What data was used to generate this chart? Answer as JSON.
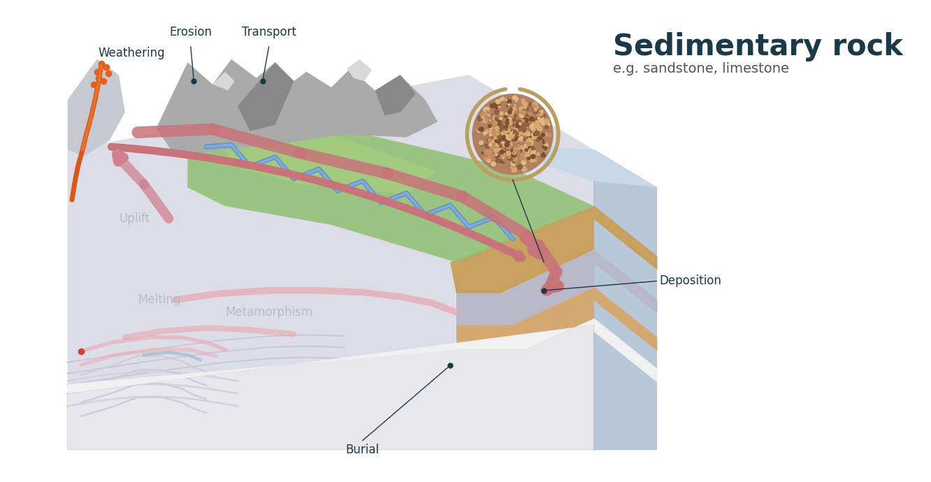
{
  "title": "Sedimentary rock",
  "subtitle": "e.g. sandstone, limestone",
  "title_color": "#1a3a4a",
  "subtitle_color": "#444444",
  "label_color": "#1a3a4a",
  "bg_color": "#ffffff",
  "labels": {
    "weathering": "Weathering",
    "erosion": "Erosion",
    "transport": "Transport",
    "uplift": "Uplift",
    "melting": "Melting",
    "metamorphism": "Metamorphism",
    "deposition": "Deposition",
    "burial": "Burial"
  },
  "arrow_red": "#c8737a",
  "arrow_red_dark": "#b05060",
  "river_blue": "#7a9ec8",
  "green_valley": "#8ab87a",
  "rock_gray": "#9a9a9a",
  "sand_color": "#c8a87a",
  "gold_circle": "#b8a060"
}
